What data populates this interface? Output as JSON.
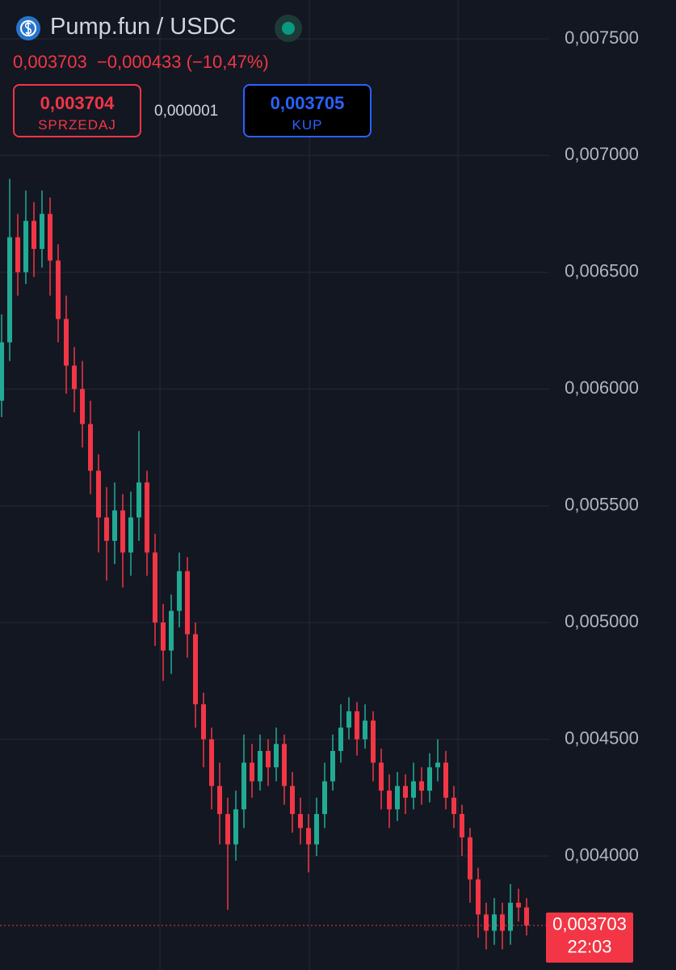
{
  "header": {
    "pair": "Pump.fun / USDC",
    "price": "0,003703",
    "change": "−0,000433 (−10,47%)",
    "sell": {
      "price": "0,003704",
      "label": "SPRZEDAJ"
    },
    "spread": "0,000001",
    "buy": {
      "price": "0,003705",
      "label": "KUP"
    }
  },
  "chart_data": {
    "type": "candlestick",
    "up_color": "#22ab94",
    "down_color": "#f23645",
    "grid": true,
    "ylim": [
      0.003512,
      0.007666
    ],
    "yticks": [
      {
        "value": 0.0075,
        "label": "0,007500"
      },
      {
        "value": 0.007,
        "label": "0,007000"
      },
      {
        "value": 0.0065,
        "label": "0,006500"
      },
      {
        "value": 0.006,
        "label": "0,006000"
      },
      {
        "value": 0.0055,
        "label": "0,005500"
      },
      {
        "value": 0.005,
        "label": "0,005000"
      },
      {
        "value": 0.0045,
        "label": "0,004500"
      },
      {
        "value": 0.004,
        "label": "0,004000"
      }
    ],
    "last_price": {
      "value": 0.003703,
      "label": "0,003703"
    },
    "countdown": "22:03",
    "open": [
      0.00595,
      0.0062,
      0.00665,
      0.0065,
      0.00672,
      0.0066,
      0.00675,
      0.00655,
      0.0063,
      0.0061,
      0.006,
      0.00585,
      0.00565,
      0.00545,
      0.00535,
      0.00548,
      0.0053,
      0.00545,
      0.0056,
      0.0053,
      0.005,
      0.00488,
      0.00505,
      0.00522,
      0.00495,
      0.00465,
      0.0045,
      0.0043,
      0.00418,
      0.00405,
      0.0042,
      0.0044,
      0.00432,
      0.00445,
      0.00438,
      0.00448,
      0.0043,
      0.00418,
      0.00412,
      0.00405,
      0.00418,
      0.00432,
      0.00445,
      0.00455,
      0.00462,
      0.0045,
      0.00458,
      0.0044,
      0.00428,
      0.0042,
      0.0043,
      0.00425,
      0.00432,
      0.00428,
      0.00438,
      0.0044,
      0.00425,
      0.00418,
      0.00408,
      0.0039,
      0.00375,
      0.00368,
      0.00375,
      0.00368,
      0.0038,
      0.00378
    ],
    "high": [
      0.00632,
      0.0069,
      0.00675,
      0.00685,
      0.0068,
      0.00685,
      0.00682,
      0.00662,
      0.0064,
      0.00618,
      0.00612,
      0.00595,
      0.00572,
      0.00558,
      0.0056,
      0.00555,
      0.00556,
      0.00582,
      0.00565,
      0.00538,
      0.00508,
      0.00512,
      0.0053,
      0.00528,
      0.005,
      0.0047,
      0.00455,
      0.0044,
      0.00425,
      0.00428,
      0.00452,
      0.00448,
      0.00452,
      0.0045,
      0.00455,
      0.00452,
      0.00436,
      0.00425,
      0.00418,
      0.00425,
      0.0044,
      0.00452,
      0.00465,
      0.00468,
      0.00466,
      0.00465,
      0.00462,
      0.00446,
      0.00435,
      0.00436,
      0.00435,
      0.0044,
      0.00438,
      0.00444,
      0.0045,
      0.00445,
      0.0043,
      0.00422,
      0.00412,
      0.00395,
      0.0038,
      0.00382,
      0.0038,
      0.00388,
      0.00386,
      0.00382
    ],
    "low": [
      0.00588,
      0.00612,
      0.0064,
      0.00645,
      0.00648,
      0.00652,
      0.0064,
      0.0062,
      0.00598,
      0.0059,
      0.00575,
      0.00555,
      0.0053,
      0.00518,
      0.00525,
      0.00515,
      0.0052,
      0.00535,
      0.0052,
      0.0049,
      0.00475,
      0.00478,
      0.00498,
      0.00485,
      0.00455,
      0.00438,
      0.0042,
      0.00405,
      0.00377,
      0.00398,
      0.00412,
      0.00425,
      0.00428,
      0.0043,
      0.00432,
      0.00422,
      0.0041,
      0.00405,
      0.00393,
      0.004,
      0.00412,
      0.00428,
      0.0044,
      0.0045,
      0.00443,
      0.00446,
      0.00432,
      0.0042,
      0.00412,
      0.00415,
      0.00418,
      0.0042,
      0.00422,
      0.00423,
      0.00432,
      0.0042,
      0.00412,
      0.004,
      0.0038,
      0.00365,
      0.0036,
      0.00362,
      0.0036,
      0.00362,
      0.00372,
      0.00366
    ],
    "close": [
      0.0062,
      0.00665,
      0.0065,
      0.00672,
      0.0066,
      0.00675,
      0.00655,
      0.0063,
      0.0061,
      0.006,
      0.00585,
      0.00565,
      0.00545,
      0.00535,
      0.00548,
      0.0053,
      0.00545,
      0.0056,
      0.0053,
      0.005,
      0.00488,
      0.00505,
      0.00522,
      0.00495,
      0.00465,
      0.0045,
      0.0043,
      0.00418,
      0.00405,
      0.0042,
      0.0044,
      0.00432,
      0.00445,
      0.00438,
      0.00448,
      0.0043,
      0.00418,
      0.00412,
      0.00405,
      0.00418,
      0.00432,
      0.00445,
      0.00455,
      0.00462,
      0.0045,
      0.00458,
      0.0044,
      0.00428,
      0.0042,
      0.0043,
      0.00425,
      0.00432,
      0.00428,
      0.00438,
      0.0044,
      0.00425,
      0.00418,
      0.00408,
      0.0039,
      0.00375,
      0.00368,
      0.00375,
      0.00368,
      0.0038,
      0.00378,
      0.003703
    ]
  }
}
